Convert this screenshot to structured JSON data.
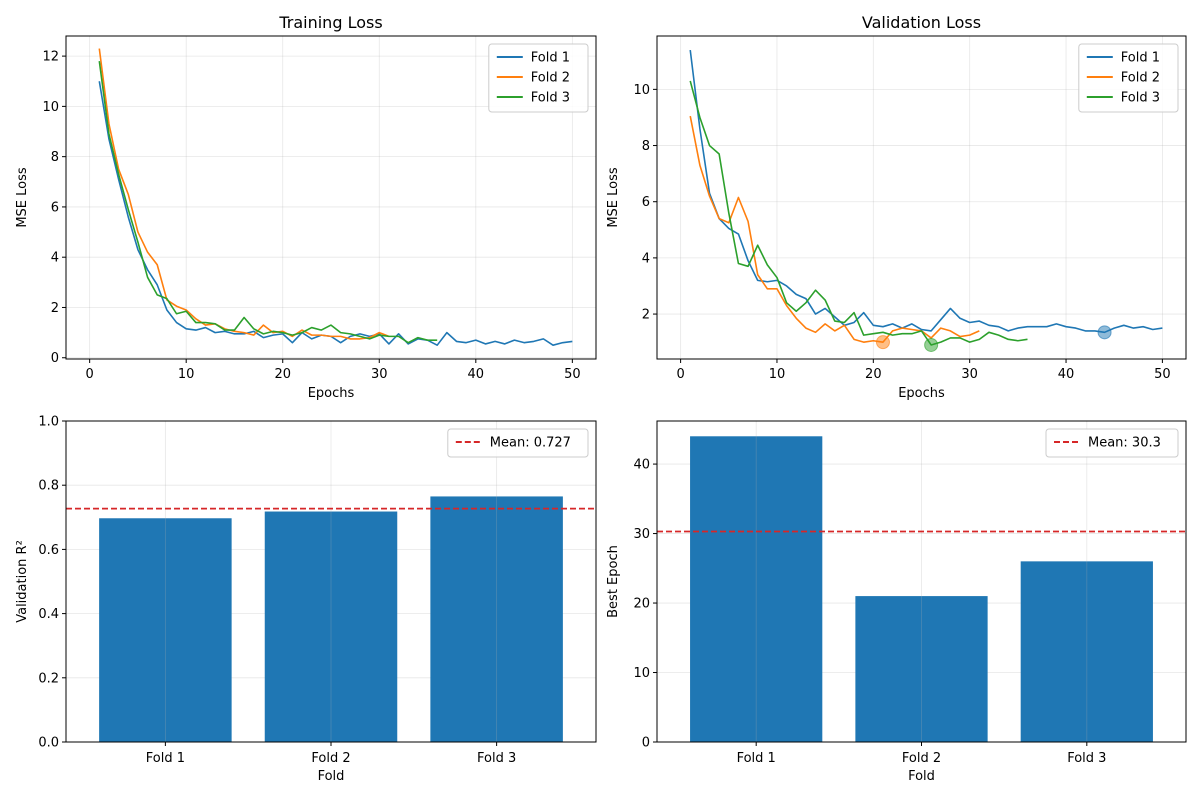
{
  "chart_data": [
    {
      "type": "line",
      "title": "Training Loss",
      "xlabel": "Epochs",
      "ylabel": "MSE Loss",
      "xlim": [
        -2.45,
        52.45
      ],
      "ylim": [
        -0.05,
        12.8
      ],
      "xticks": [
        0,
        10,
        20,
        30,
        40,
        50
      ],
      "yticks": [
        0,
        2,
        4,
        6,
        8,
        10,
        12
      ],
      "grid": true,
      "legend": "top-right",
      "series": [
        {
          "name": "Fold 1",
          "color": "#1f77b4",
          "y": [
            11.0,
            8.7,
            7.1,
            5.6,
            4.3,
            3.5,
            2.9,
            1.9,
            1.4,
            1.15,
            1.1,
            1.2,
            1.0,
            1.05,
            0.95,
            0.95,
            1.05,
            0.8,
            0.9,
            0.95,
            0.6,
            1.0,
            0.75,
            0.9,
            0.85,
            0.6,
            0.85,
            0.95,
            0.85,
            0.95,
            0.55,
            0.95,
            0.55,
            0.75,
            0.7,
            0.5,
            1.0,
            0.65,
            0.6,
            0.7,
            0.55,
            0.65,
            0.55,
            0.7,
            0.6,
            0.65,
            0.75,
            0.5,
            0.6,
            0.65
          ]
        },
        {
          "name": "Fold 2",
          "color": "#ff7f0e",
          "y": [
            12.3,
            9.3,
            7.5,
            6.5,
            5.0,
            4.2,
            3.7,
            2.3,
            2.05,
            1.9,
            1.55,
            1.3,
            1.35,
            1.15,
            1.05,
            1.0,
            0.9,
            1.3,
            1.0,
            1.05,
            0.85,
            1.1,
            0.9,
            0.9,
            0.85,
            0.85,
            0.75,
            0.75,
            0.8,
            1.0,
            0.85
          ]
        },
        {
          "name": "Fold 3",
          "color": "#2ca02c",
          "y": [
            11.8,
            8.9,
            7.3,
            5.9,
            4.6,
            3.2,
            2.5,
            2.35,
            1.75,
            1.85,
            1.4,
            1.4,
            1.35,
            1.1,
            1.1,
            1.6,
            1.15,
            0.95,
            1.05,
            1.0,
            0.9,
            1.0,
            1.2,
            1.1,
            1.3,
            1.0,
            0.95,
            0.85,
            0.75,
            0.9,
            0.85,
            0.85,
            0.6,
            0.8,
            0.7,
            0.7
          ]
        }
      ]
    },
    {
      "type": "line",
      "title": "Validation Loss",
      "xlabel": "Epochs",
      "ylabel": "MSE Loss",
      "xlim": [
        -2.45,
        52.45
      ],
      "ylim": [
        0.4,
        11.9
      ],
      "xticks": [
        0,
        10,
        20,
        30,
        40,
        50
      ],
      "yticks": [
        2,
        4,
        6,
        8,
        10
      ],
      "grid": true,
      "legend": "top-right",
      "series": [
        {
          "name": "Fold 1",
          "color": "#1f77b4",
          "y": [
            11.4,
            8.6,
            6.3,
            5.4,
            5.05,
            4.85,
            3.9,
            3.2,
            3.15,
            3.2,
            3.0,
            2.7,
            2.55,
            2.0,
            2.2,
            1.9,
            1.6,
            1.7,
            2.05,
            1.6,
            1.55,
            1.65,
            1.5,
            1.65,
            1.45,
            1.4,
            1.8,
            2.2,
            1.85,
            1.7,
            1.75,
            1.6,
            1.55,
            1.4,
            1.5,
            1.55,
            1.55,
            1.55,
            1.65,
            1.55,
            1.5,
            1.4,
            1.4,
            1.35,
            1.5,
            1.6,
            1.5,
            1.55,
            1.45,
            1.5
          ]
        },
        {
          "name": "Fold 2",
          "color": "#ff7f0e",
          "y": [
            9.05,
            7.3,
            6.2,
            5.4,
            5.25,
            6.15,
            5.3,
            3.4,
            2.9,
            2.9,
            2.3,
            1.85,
            1.5,
            1.35,
            1.65,
            1.4,
            1.6,
            1.1,
            1.0,
            1.05,
            1.0,
            1.4,
            1.5,
            1.45,
            1.4,
            1.15,
            1.5,
            1.4,
            1.2,
            1.25,
            1.4
          ]
        },
        {
          "name": "Fold 3",
          "color": "#2ca02c",
          "y": [
            10.3,
            9.0,
            8.0,
            7.7,
            5.6,
            3.8,
            3.7,
            4.45,
            3.75,
            3.3,
            2.4,
            2.1,
            2.4,
            2.85,
            2.5,
            1.75,
            1.7,
            2.05,
            1.25,
            1.3,
            1.35,
            1.25,
            1.3,
            1.3,
            1.4,
            0.9,
            1.0,
            1.15,
            1.15,
            1.0,
            1.1,
            1.35,
            1.25,
            1.1,
            1.05,
            1.1
          ]
        }
      ],
      "best_points": [
        {
          "x": 44,
          "y": 1.35,
          "color": "#1f77b4"
        },
        {
          "x": 21,
          "y": 1.0,
          "color": "#ff7f0e"
        },
        {
          "x": 26,
          "y": 0.9,
          "color": "#2ca02c"
        }
      ]
    },
    {
      "type": "bar",
      "title": "",
      "xlabel": "Fold",
      "ylabel": "Validation R²",
      "categories": [
        "Fold 1",
        "Fold 2",
        "Fold 3"
      ],
      "values": [
        0.697,
        0.718,
        0.765
      ],
      "ylim": [
        0,
        1.0
      ],
      "yticks": [
        0.0,
        0.2,
        0.4,
        0.6,
        0.8,
        1.0
      ],
      "ytick_decimals": 1,
      "color": "#1f77b4",
      "grid": true,
      "legend": "top-right",
      "mean_line": {
        "value": 0.727,
        "label": "Mean: 0.727",
        "color": "#d62728"
      }
    },
    {
      "type": "bar",
      "title": "",
      "xlabel": "Fold",
      "ylabel": "Best Epoch",
      "categories": [
        "Fold 1",
        "Fold 2",
        "Fold 3"
      ],
      "values": [
        44,
        21,
        26
      ],
      "ylim": [
        0,
        46.2
      ],
      "yticks": [
        0,
        10,
        20,
        30,
        40
      ],
      "ytick_decimals": 0,
      "color": "#1f77b4",
      "grid": true,
      "legend": "top-right",
      "mean_line": {
        "value": 30.3,
        "label": "Mean: 30.3",
        "color": "#d62728"
      }
    }
  ]
}
